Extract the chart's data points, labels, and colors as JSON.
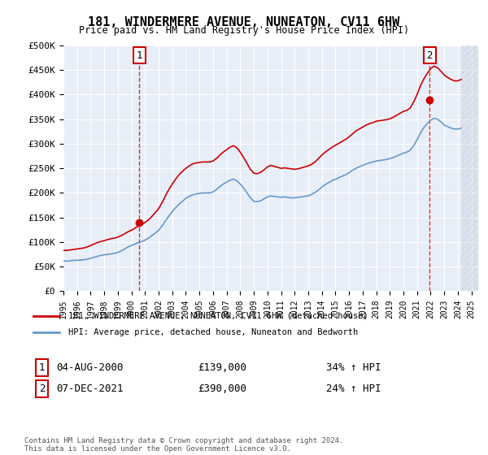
{
  "title": "181, WINDERMERE AVENUE, NUNEATON, CV11 6HW",
  "subtitle": "Price paid vs. HM Land Registry's House Price Index (HPI)",
  "legend_line1": "181, WINDERMERE AVENUE, NUNEATON, CV11 6HW (detached house)",
  "legend_line2": "HPI: Average price, detached house, Nuneaton and Bedworth",
  "annotation1_label": "1",
  "annotation1_date": "04-AUG-2000",
  "annotation1_price": "£139,000",
  "annotation1_hpi": "34% ↑ HPI",
  "annotation2_label": "2",
  "annotation2_date": "07-DEC-2021",
  "annotation2_price": "£390,000",
  "annotation2_hpi": "24% ↑ HPI",
  "footer": "Contains HM Land Registry data © Crown copyright and database right 2024.\nThis data is licensed under the Open Government Licence v3.0.",
  "bg_color": "#e8eef8",
  "hatch_color": "#c0c8d8",
  "red_line_color": "#cc0000",
  "blue_line_color": "#6699cc",
  "marker_fill": "#cc0000",
  "dashed_line_color": "#cc0000",
  "grid_color": "#ffffff",
  "ylim": [
    0,
    500000
  ],
  "xlim_start": 1995.0,
  "xlim_end": 2025.5,
  "transaction1_x": 2000.583,
  "transaction1_y": 139000,
  "transaction2_x": 2021.917,
  "transaction2_y": 390000,
  "hpi_data_x": [
    1995.0,
    1995.25,
    1995.5,
    1995.75,
    1996.0,
    1996.25,
    1996.5,
    1996.75,
    1997.0,
    1997.25,
    1997.5,
    1997.75,
    1998.0,
    1998.25,
    1998.5,
    1998.75,
    1999.0,
    1999.25,
    1999.5,
    1999.75,
    2000.0,
    2000.25,
    2000.5,
    2000.75,
    2001.0,
    2001.25,
    2001.5,
    2001.75,
    2002.0,
    2002.25,
    2002.5,
    2002.75,
    2003.0,
    2003.25,
    2003.5,
    2003.75,
    2004.0,
    2004.25,
    2004.5,
    2004.75,
    2005.0,
    2005.25,
    2005.5,
    2005.75,
    2006.0,
    2006.25,
    2006.5,
    2006.75,
    2007.0,
    2007.25,
    2007.5,
    2007.75,
    2008.0,
    2008.25,
    2008.5,
    2008.75,
    2009.0,
    2009.25,
    2009.5,
    2009.75,
    2010.0,
    2010.25,
    2010.5,
    2010.75,
    2011.0,
    2011.25,
    2011.5,
    2011.75,
    2012.0,
    2012.25,
    2012.5,
    2012.75,
    2013.0,
    2013.25,
    2013.5,
    2013.75,
    2014.0,
    2014.25,
    2014.5,
    2014.75,
    2015.0,
    2015.25,
    2015.5,
    2015.75,
    2016.0,
    2016.25,
    2016.5,
    2016.75,
    2017.0,
    2017.25,
    2017.5,
    2017.75,
    2018.0,
    2018.25,
    2018.5,
    2018.75,
    2019.0,
    2019.25,
    2019.5,
    2019.75,
    2020.0,
    2020.25,
    2020.5,
    2020.75,
    2021.0,
    2021.25,
    2021.5,
    2021.75,
    2022.0,
    2022.25,
    2022.5,
    2022.75,
    2023.0,
    2023.25,
    2023.5,
    2023.75,
    2024.0,
    2024.25
  ],
  "hpi_data_y": [
    62000,
    61000,
    62000,
    63000,
    63000,
    63500,
    64000,
    65000,
    67000,
    69000,
    71000,
    73000,
    74000,
    75000,
    76000,
    77000,
    79000,
    82000,
    86000,
    90000,
    93000,
    96000,
    99000,
    101000,
    104000,
    108000,
    113000,
    118000,
    124000,
    133000,
    143000,
    153000,
    162000,
    170000,
    177000,
    183000,
    189000,
    193000,
    196000,
    198000,
    199000,
    200000,
    200000,
    200000,
    202000,
    207000,
    213000,
    218000,
    222000,
    226000,
    228000,
    225000,
    218000,
    210000,
    200000,
    190000,
    183000,
    182000,
    184000,
    188000,
    192000,
    194000,
    193000,
    192000,
    191000,
    192000,
    191000,
    190000,
    190000,
    191000,
    192000,
    193000,
    194000,
    197000,
    201000,
    206000,
    212000,
    217000,
    221000,
    225000,
    228000,
    231000,
    234000,
    237000,
    241000,
    246000,
    250000,
    253000,
    256000,
    259000,
    261000,
    263000,
    265000,
    266000,
    267000,
    268000,
    270000,
    272000,
    275000,
    278000,
    281000,
    283000,
    287000,
    296000,
    308000,
    322000,
    333000,
    341000,
    348000,
    352000,
    350000,
    345000,
    338000,
    335000,
    332000,
    330000,
    330000,
    332000
  ],
  "price_data_x": [
    1995.0,
    1995.25,
    1995.5,
    1995.75,
    1996.0,
    1996.25,
    1996.5,
    1996.75,
    1997.0,
    1997.25,
    1997.5,
    1997.75,
    1998.0,
    1998.25,
    1998.5,
    1998.75,
    1999.0,
    1999.25,
    1999.5,
    1999.75,
    2000.0,
    2000.25,
    2000.5,
    2000.75,
    2001.0,
    2001.25,
    2001.5,
    2001.75,
    2002.0,
    2002.25,
    2002.5,
    2002.75,
    2003.0,
    2003.25,
    2003.5,
    2003.75,
    2004.0,
    2004.25,
    2004.5,
    2004.75,
    2005.0,
    2005.25,
    2005.5,
    2005.75,
    2006.0,
    2006.25,
    2006.5,
    2006.75,
    2007.0,
    2007.25,
    2007.5,
    2007.75,
    2008.0,
    2008.25,
    2008.5,
    2008.75,
    2009.0,
    2009.25,
    2009.5,
    2009.75,
    2010.0,
    2010.25,
    2010.5,
    2010.75,
    2011.0,
    2011.25,
    2011.5,
    2011.75,
    2012.0,
    2012.25,
    2012.5,
    2012.75,
    2013.0,
    2013.25,
    2013.5,
    2013.75,
    2014.0,
    2014.25,
    2014.5,
    2014.75,
    2015.0,
    2015.25,
    2015.5,
    2015.75,
    2016.0,
    2016.25,
    2016.5,
    2016.75,
    2017.0,
    2017.25,
    2017.5,
    2017.75,
    2018.0,
    2018.25,
    2018.5,
    2018.75,
    2019.0,
    2019.25,
    2019.5,
    2019.75,
    2020.0,
    2020.25,
    2020.5,
    2020.75,
    2021.0,
    2021.25,
    2021.5,
    2021.75,
    2022.0,
    2022.25,
    2022.5,
    2022.75,
    2023.0,
    2023.25,
    2023.5,
    2023.75,
    2024.0,
    2024.25
  ],
  "price_data_y": [
    83000,
    83000,
    84000,
    85000,
    86000,
    87000,
    88000,
    90000,
    93000,
    96000,
    99000,
    101000,
    103000,
    105000,
    107000,
    108000,
    110000,
    113000,
    117000,
    121000,
    124000,
    128000,
    133000,
    136000,
    140000,
    145000,
    152000,
    160000,
    168000,
    180000,
    194000,
    207000,
    218000,
    228000,
    237000,
    244000,
    250000,
    255000,
    259000,
    261000,
    262000,
    263000,
    263000,
    263000,
    265000,
    270000,
    277000,
    283000,
    288000,
    293000,
    296000,
    292000,
    283000,
    272000,
    260000,
    248000,
    240000,
    239000,
    242000,
    247000,
    253000,
    256000,
    254000,
    252000,
    250000,
    251000,
    250000,
    249000,
    248000,
    249000,
    251000,
    253000,
    255000,
    258000,
    263000,
    270000,
    277000,
    283000,
    288000,
    293000,
    297000,
    301000,
    305000,
    309000,
    314000,
    320000,
    326000,
    330000,
    334000,
    338000,
    341000,
    343000,
    346000,
    347000,
    348000,
    349000,
    351000,
    354000,
    358000,
    362000,
    366000,
    368000,
    373000,
    385000,
    400000,
    418000,
    432000,
    443000,
    453000,
    458000,
    455000,
    448000,
    440000,
    435000,
    431000,
    428000,
    428000,
    431000
  ]
}
